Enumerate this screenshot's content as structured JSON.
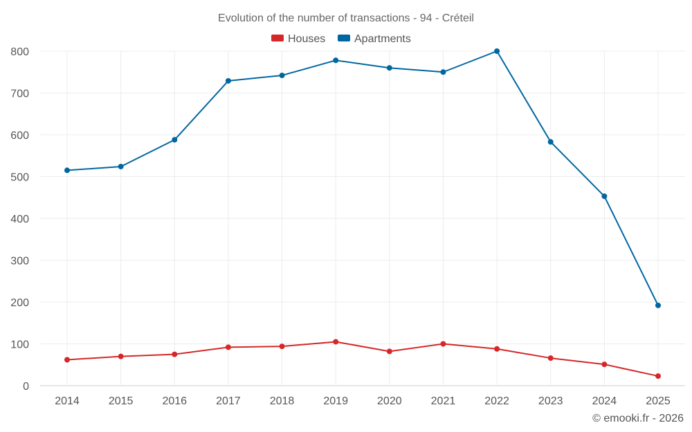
{
  "chart_data": {
    "type": "line",
    "title": "Evolution of the number of transactions - 94 - Créteil",
    "categories": [
      "2014",
      "2015",
      "2016",
      "2017",
      "2018",
      "2019",
      "2020",
      "2021",
      "2022",
      "2023",
      "2024",
      "2025"
    ],
    "series": [
      {
        "name": "Houses",
        "color": "#d62728",
        "values": [
          62,
          70,
          75,
          92,
          94,
          105,
          82,
          100,
          88,
          66,
          51,
          23
        ]
      },
      {
        "name": "Apartments",
        "color": "#0066a1",
        "values": [
          515,
          524,
          588,
          729,
          742,
          778,
          760,
          750,
          800,
          583,
          453,
          192
        ]
      }
    ],
    "yticks": [
      0,
      100,
      200,
      300,
      400,
      500,
      600,
      700,
      800
    ],
    "ylim": [
      0,
      800
    ],
    "xlabel": "",
    "ylabel": "",
    "grid": true,
    "legend_position": "top-center"
  },
  "credit": "© emooki.fr - 2026"
}
